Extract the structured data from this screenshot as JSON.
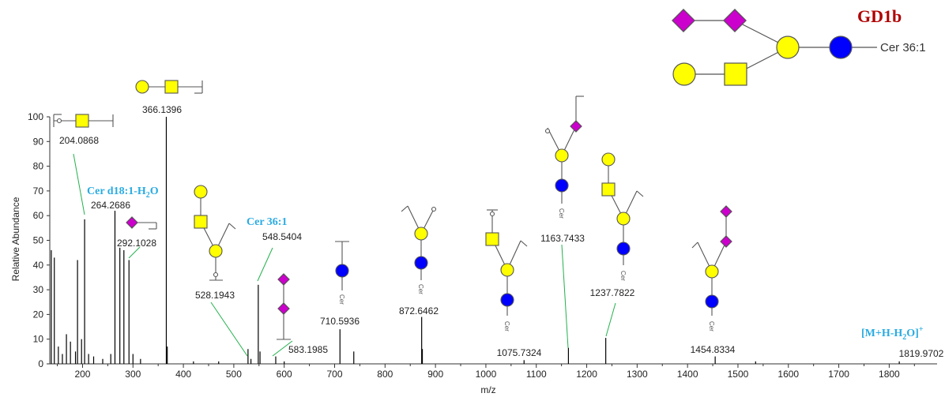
{
  "chart_data": {
    "type": "bar",
    "title": "GD1b",
    "xlabel": "m/z",
    "ylabel": "Relative Abundance",
    "xlim": [
      135,
      1895
    ],
    "ylim": [
      0,
      100
    ],
    "x_ticks": [
      200,
      300,
      400,
      500,
      600,
      700,
      800,
      900,
      1000,
      1100,
      1200,
      1300,
      1400,
      1500,
      1600,
      1700,
      1800
    ],
    "y_ticks": [
      0,
      10,
      20,
      30,
      40,
      50,
      60,
      70,
      80,
      90,
      100
    ],
    "grid": false,
    "peaks": [
      {
        "mz": 138,
        "intensity": 46
      },
      {
        "mz": 144,
        "intensity": 43
      },
      {
        "mz": 152,
        "intensity": 7
      },
      {
        "mz": 160,
        "intensity": 4
      },
      {
        "mz": 168,
        "intensity": 12
      },
      {
        "mz": 176,
        "intensity": 9
      },
      {
        "mz": 186,
        "intensity": 5
      },
      {
        "mz": 190,
        "intensity": 42
      },
      {
        "mz": 198,
        "intensity": 10
      },
      {
        "mz": 204.0868,
        "intensity": 58.5
      },
      {
        "mz": 212,
        "intensity": 4
      },
      {
        "mz": 222,
        "intensity": 3
      },
      {
        "mz": 240,
        "intensity": 2
      },
      {
        "mz": 256,
        "intensity": 4
      },
      {
        "mz": 264.2686,
        "intensity": 62
      },
      {
        "mz": 274,
        "intensity": 47
      },
      {
        "mz": 282,
        "intensity": 46
      },
      {
        "mz": 292.1028,
        "intensity": 42
      },
      {
        "mz": 300,
        "intensity": 4
      },
      {
        "mz": 315,
        "intensity": 2
      },
      {
        "mz": 366.1396,
        "intensity": 100
      },
      {
        "mz": 368,
        "intensity": 7
      },
      {
        "mz": 420,
        "intensity": 1
      },
      {
        "mz": 470,
        "intensity": 1
      },
      {
        "mz": 528.1943,
        "intensity": 6
      },
      {
        "mz": 534,
        "intensity": 2
      },
      {
        "mz": 548.5404,
        "intensity": 32
      },
      {
        "mz": 552,
        "intensity": 5
      },
      {
        "mz": 583.1985,
        "intensity": 3
      },
      {
        "mz": 600,
        "intensity": 1
      },
      {
        "mz": 710.5936,
        "intensity": 14
      },
      {
        "mz": 738,
        "intensity": 5
      },
      {
        "mz": 872.6462,
        "intensity": 19
      },
      {
        "mz": 874,
        "intensity": 6
      },
      {
        "mz": 1075.7324,
        "intensity": 1.5
      },
      {
        "mz": 1163.7433,
        "intensity": 6.5
      },
      {
        "mz": 1237.7822,
        "intensity": 10.5
      },
      {
        "mz": 1454.8334,
        "intensity": 3
      },
      {
        "mz": 1535,
        "intensity": 1
      },
      {
        "mz": 1819.9702,
        "intensity": 1
      }
    ],
    "peak_labels": [
      {
        "mz": 204.0868,
        "text": "204.0868"
      },
      {
        "mz": 264.2686,
        "text": "264.2686"
      },
      {
        "mz": 292.1028,
        "text": "292.1028"
      },
      {
        "mz": 366.1396,
        "text": "366.1396"
      },
      {
        "mz": 528.1943,
        "text": "528.1943"
      },
      {
        "mz": 548.5404,
        "text": "548.5404"
      },
      {
        "mz": 583.1985,
        "text": "583.1985"
      },
      {
        "mz": 710.5936,
        "text": "710.5936"
      },
      {
        "mz": 872.6462,
        "text": "872.6462"
      },
      {
        "mz": 1075.7324,
        "text": "1075.7324"
      },
      {
        "mz": 1163.7433,
        "text": "1163.7433"
      },
      {
        "mz": 1237.7822,
        "text": "1237.7822"
      },
      {
        "mz": 1454.8334,
        "text": "1454.8334"
      },
      {
        "mz": 1819.9702,
        "text": "1819.9702"
      }
    ],
    "annotations": {
      "cer_d18": {
        "base": "Cer d18:1-H",
        "sub": "2",
        "tail": "O"
      },
      "cer_36": "Cer 36:1",
      "mh": {
        "base": "[M+H-H",
        "sub": "2",
        "tail": "O]",
        "sup": "+"
      },
      "structure_ceramide": "Cer 36:1",
      "cer_tag": "Cer"
    },
    "colors": {
      "galactose": "#ffff00",
      "galnac": "#ffff00",
      "glucose": "#0000ff",
      "sialic_acid": "#cc00cc",
      "annotation": "#29abe2",
      "title": "#b00000",
      "leader_line": "#22b14c",
      "spectrum": "#000000"
    }
  }
}
